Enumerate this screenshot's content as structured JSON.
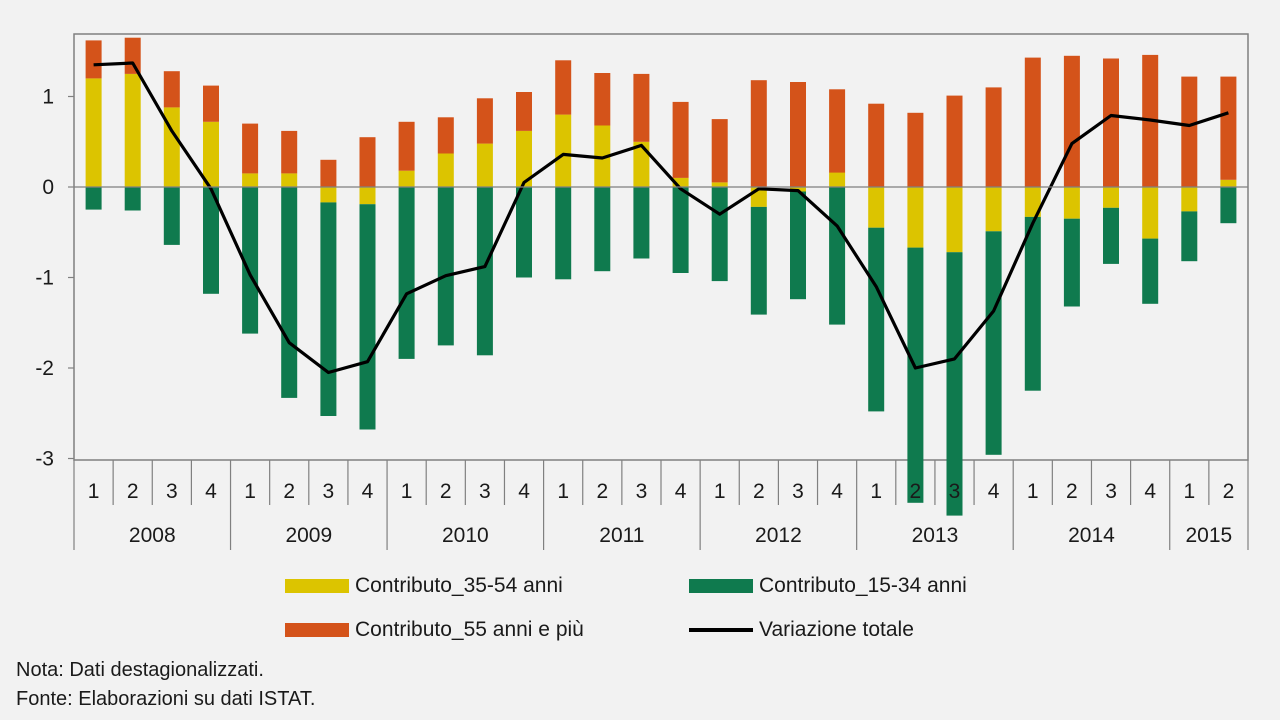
{
  "chart_data": {
    "type": "bar",
    "quarters": [
      "1",
      "2",
      "3",
      "4",
      "1",
      "2",
      "3",
      "4",
      "1",
      "2",
      "3",
      "4",
      "1",
      "2",
      "3",
      "4",
      "1",
      "2",
      "3",
      "4",
      "1",
      "2",
      "3",
      "4",
      "1",
      "2",
      "3",
      "4",
      "1",
      "2"
    ],
    "years": [
      {
        "label": "2008",
        "span": 4
      },
      {
        "label": "2009",
        "span": 4
      },
      {
        "label": "2010",
        "span": 4
      },
      {
        "label": "2011",
        "span": 4
      },
      {
        "label": "2012",
        "span": 4
      },
      {
        "label": "2013",
        "span": 4
      },
      {
        "label": "2014",
        "span": 4
      },
      {
        "label": "2015",
        "span": 2
      }
    ],
    "ylim": [
      -3,
      1.6
    ],
    "yticks": [
      {
        "value": 1,
        "label": "1"
      },
      {
        "value": 0,
        "label": "0"
      },
      {
        "value": -1,
        "label": "-1"
      },
      {
        "value": -2,
        "label": "-2"
      },
      {
        "value": -3,
        "label": "-3"
      }
    ],
    "series": [
      {
        "name": "Contributo_35-54 anni",
        "color": "#dcc400",
        "values": [
          1.2,
          1.25,
          0.88,
          0.72,
          0.15,
          0.15,
          -0.17,
          -0.19,
          0.18,
          0.37,
          0.48,
          0.62,
          0.8,
          0.68,
          0.5,
          0.1,
          0.05,
          -0.22,
          -0.05,
          0.16,
          -0.45,
          -0.67,
          -0.72,
          -0.49,
          -0.33,
          -0.35,
          -0.23,
          -0.57,
          -0.27,
          0.08
        ]
      },
      {
        "name": "Contributo_15-34 anni",
        "color": "#0f7a4e",
        "values": [
          -0.25,
          -0.26,
          -0.64,
          -1.18,
          -1.62,
          -2.33,
          -2.36,
          -2.49,
          -1.9,
          -1.75,
          -1.86,
          -1.0,
          -1.02,
          -0.93,
          -0.79,
          -0.95,
          -1.04,
          -1.19,
          -1.19,
          -1.52,
          -2.03,
          -2.82,
          -2.91,
          -2.47,
          -1.92,
          -0.97,
          -0.62,
          -0.72,
          -0.55,
          -0.4
        ]
      },
      {
        "name": "Contributo_55 anni e più",
        "color": "#d4531a",
        "values": [
          0.42,
          0.4,
          0.4,
          0.4,
          0.55,
          0.47,
          0.3,
          0.55,
          0.54,
          0.4,
          0.5,
          0.43,
          0.6,
          0.58,
          0.75,
          0.84,
          0.7,
          1.18,
          1.16,
          0.92,
          0.92,
          0.82,
          1.01,
          1.1,
          1.43,
          1.45,
          1.42,
          1.46,
          1.22,
          1.14
        ]
      },
      {
        "name": "Variazione totale",
        "color": "#000000",
        "type": "line",
        "values": [
          1.35,
          1.37,
          0.62,
          -0.02,
          -0.97,
          -1.72,
          -2.05,
          -1.93,
          -1.18,
          -0.98,
          -0.88,
          0.05,
          0.36,
          0.32,
          0.46,
          -0.02,
          -0.3,
          -0.02,
          -0.04,
          -0.43,
          -1.1,
          -2.0,
          -1.9,
          -1.37,
          -0.4,
          0.48,
          0.79,
          0.74,
          0.68,
          0.82
        ]
      }
    ],
    "grid": false,
    "legend_position": "bottom"
  },
  "notes": {
    "nota": "Nota: Dati destagionalizzati.",
    "fonte": "Fonte: Elaborazioni su dati ISTAT."
  }
}
